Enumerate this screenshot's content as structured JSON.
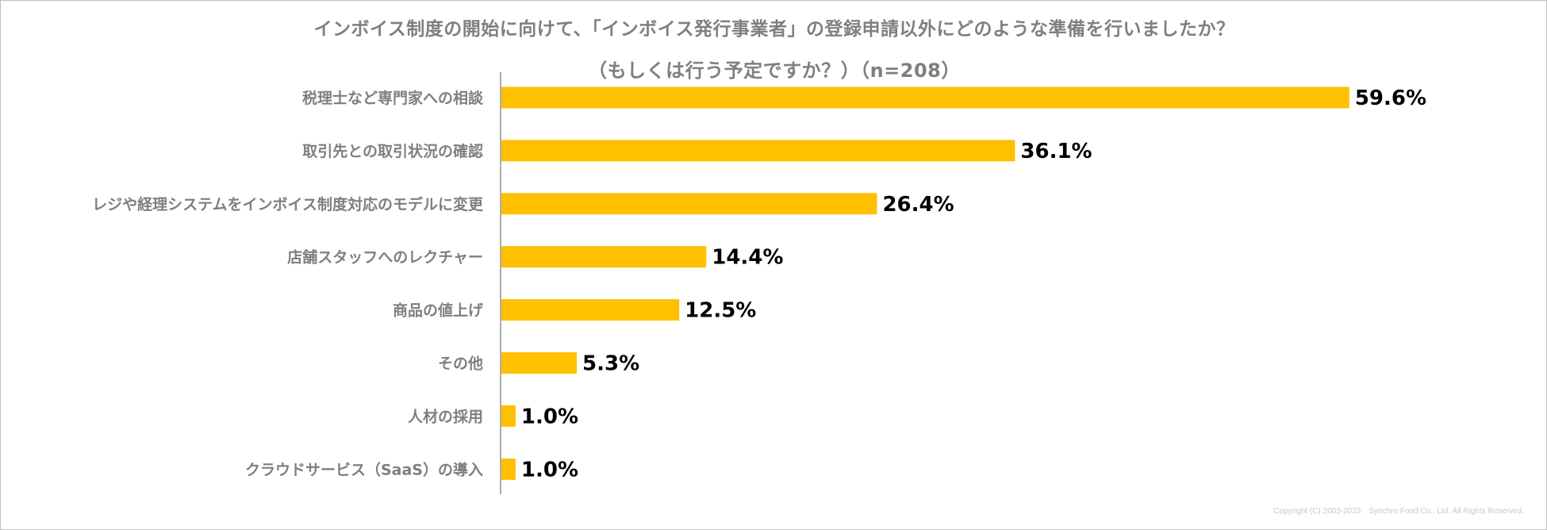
{
  "title_line1": "インボイス制度の開始に向けて、「インボイス発行事業者」の登録申請以外にどのような準備を行いましたか？",
  "title_line2": "（もしくは行う予定ですか？）（n=208）",
  "copyright": "Copyright (C) 2003-2023　Synchro Food Co., Ltd. All Rights Reserved.",
  "colors": {
    "bar": "#FFC000",
    "category_text": "#7F7F7F",
    "value_text": "#000000",
    "axis": "#595959"
  },
  "chart_data": {
    "type": "bar",
    "orientation": "horizontal",
    "unit": "%",
    "xlim": [
      0,
      60
    ],
    "categories": [
      "税理士など専門家への相談",
      "取引先との取引状況の確認",
      "レジや経理システムをインボイス制度対応のモデルに変更",
      "店舗スタッフへのレクチャー",
      "商品の値上げ",
      "その他",
      "人材の採用",
      "クラウドサービス（SaaS）の導入"
    ],
    "values": [
      59.6,
      36.1,
      26.4,
      14.4,
      12.5,
      5.3,
      1.0,
      1.0
    ],
    "value_labels": [
      "59.6%",
      "36.1%",
      "26.4%",
      "14.4%",
      "12.5%",
      "5.3%",
      "1.0%",
      "1.0%"
    ]
  }
}
